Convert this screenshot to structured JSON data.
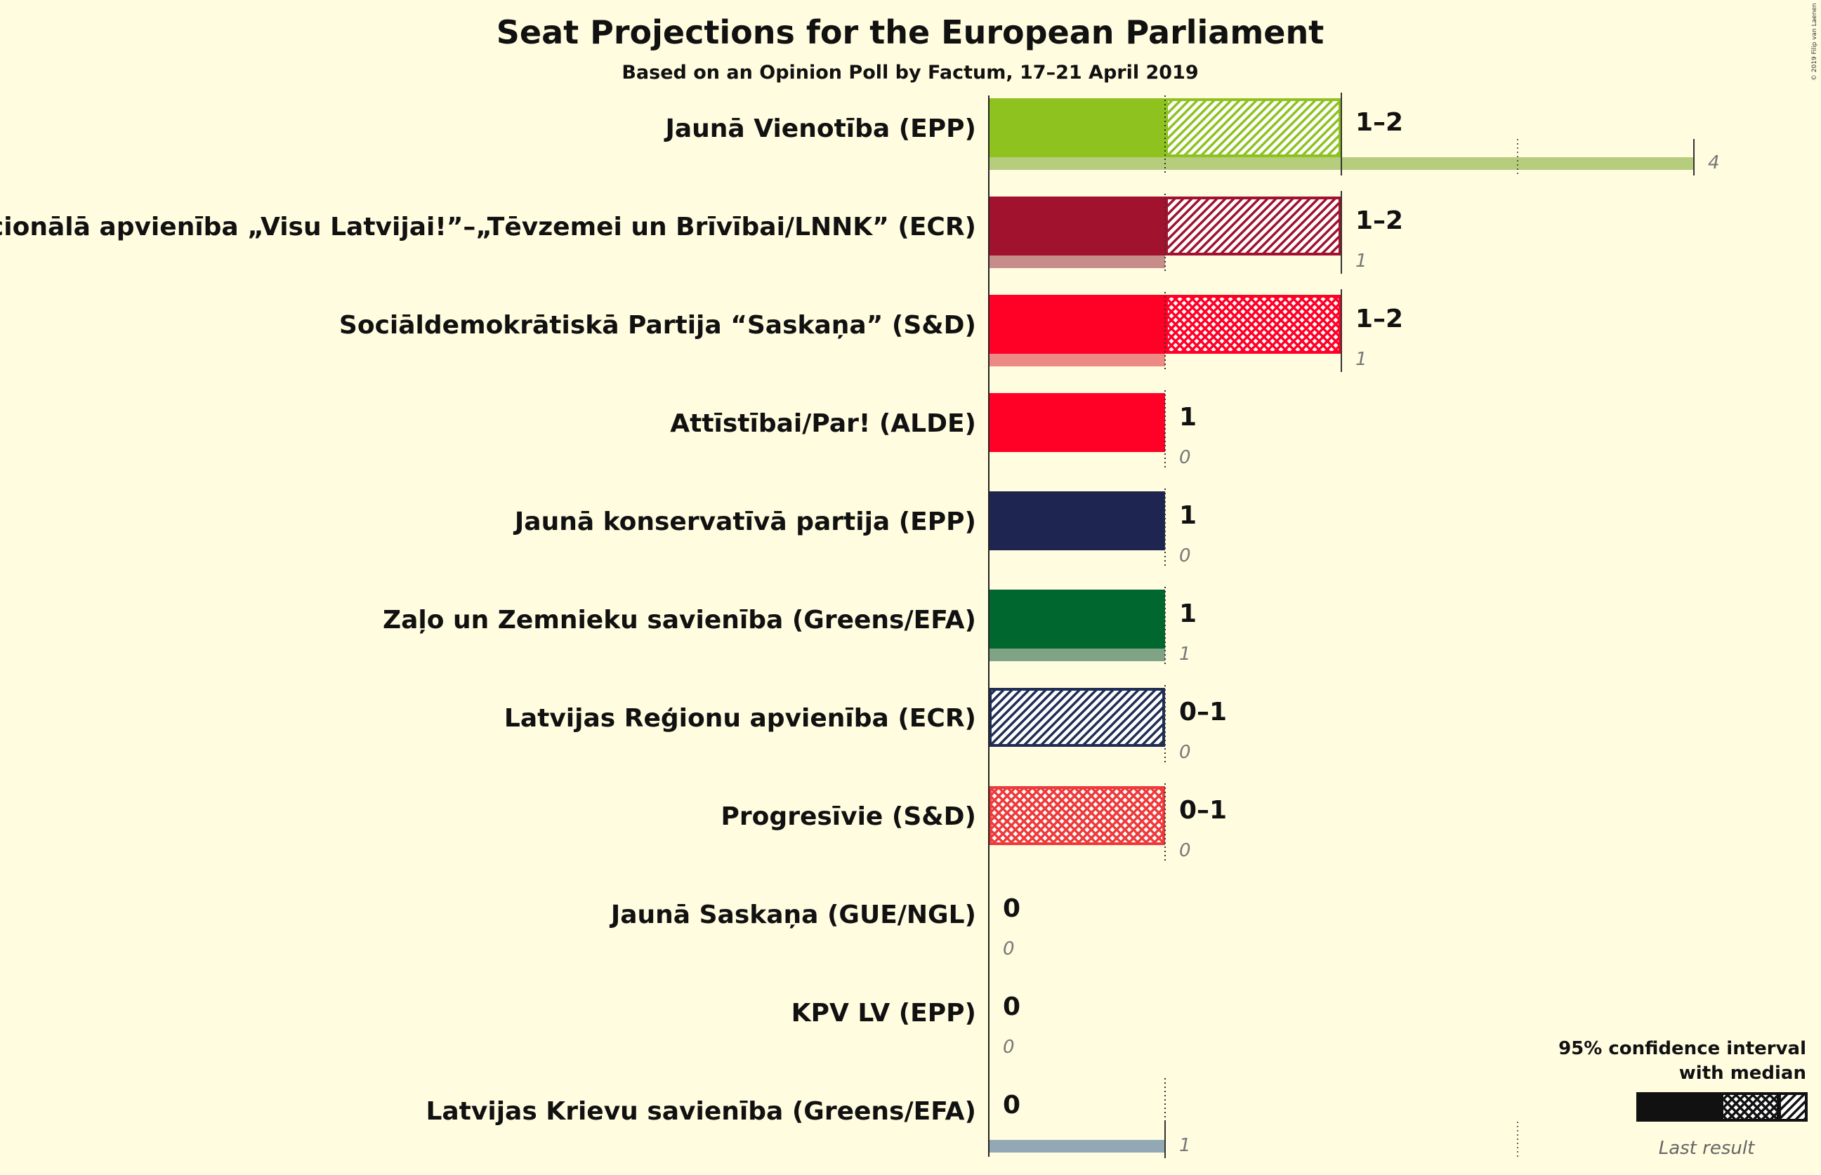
{
  "chart_data": {
    "type": "bar",
    "orientation": "horizontal",
    "title": "Seat Projections for the European Parliament",
    "subtitle": "Based on an Opinion Poll by Factum, 17–21 April 2019",
    "copyright": "© 2019 Filip van Laenen",
    "xlim": [
      0,
      4
    ],
    "parties": [
      {
        "name": "Jaunā Vienotība (EPP)",
        "color": "#8dc21f",
        "ci_low": 1,
        "median": 1,
        "ci_high": 2,
        "range_label": "1–2",
        "last_result": 4,
        "last_label": "4",
        "last_color": "#b5cd7d",
        "pattern": "diag"
      },
      {
        "name": "Nacionālā apvienība „Visu Latvijai!”–„Tēvzemei un Brīvībai/LNNK” (ECR)",
        "color": "#a0122e",
        "ci_low": 1,
        "median": 1,
        "ci_high": 2,
        "range_label": "1–2",
        "last_result": 1,
        "last_label": "1",
        "last_color": "#c78d8a",
        "pattern": "diag"
      },
      {
        "name": "Sociāldemokrātiskā Partija “Saskaņa” (S&D)",
        "color": "#ff0026",
        "ci_low": 1,
        "median": 2,
        "ci_high": 2,
        "range_label": "1–2",
        "last_result": 1,
        "last_label": "1",
        "last_color": "#ee8a86",
        "pattern": "cross"
      },
      {
        "name": "Attīstībai/Par! (ALDE)",
        "color": "#ff0026",
        "ci_low": 1,
        "median": 1,
        "ci_high": 1,
        "range_label": "1",
        "last_result": 0,
        "last_label": "0",
        "last_color": "#ee8a86",
        "pattern": "none"
      },
      {
        "name": "Jaunā konservatīvā partija (EPP)",
        "color": "#1f2551",
        "ci_low": 1,
        "median": 1,
        "ci_high": 1,
        "range_label": "1",
        "last_result": 0,
        "last_label": "0",
        "last_color": "#8a8aa0",
        "pattern": "none"
      },
      {
        "name": "Zaļo un Zemnieku savienība (Greens/EFA)",
        "color": "#00672f",
        "ci_low": 1,
        "median": 1,
        "ci_high": 1,
        "range_label": "1",
        "last_result": 1,
        "last_label": "1",
        "last_color": "#7fa384",
        "pattern": "none"
      },
      {
        "name": "Latvijas Reģionu apvienība (ECR)",
        "color": "#1f2e55",
        "ci_low": 0,
        "median": 0,
        "ci_high": 1,
        "range_label": "0–1",
        "last_result": 0,
        "last_label": "0",
        "last_color": "#8a8aa0",
        "pattern": "diag"
      },
      {
        "name": "Progresīvie (S&D)",
        "color": "#ee3a3a",
        "ci_low": 0,
        "median": 1,
        "ci_high": 1,
        "range_label": "0–1",
        "last_result": 0,
        "last_label": "0",
        "last_color": "#ee8a86",
        "pattern": "cross"
      },
      {
        "name": "Jaunā Saskaņa (GUE/NGL)",
        "color": "#990000",
        "ci_low": 0,
        "median": 0,
        "ci_high": 0,
        "range_label": "0",
        "last_result": 0,
        "last_label": "0",
        "last_color": "#c78d8a",
        "pattern": "none"
      },
      {
        "name": "KPV LV (EPP)",
        "color": "#333333",
        "ci_low": 0,
        "median": 0,
        "ci_high": 0,
        "range_label": "0",
        "last_result": 0,
        "last_label": "0",
        "last_color": "#999999",
        "pattern": "none"
      },
      {
        "name": "Latvijas Krievu savienība (Greens/EFA)",
        "color": "#5a7f99",
        "ci_low": 0,
        "median": 0,
        "ci_high": 0,
        "range_label": "0",
        "last_result": 1,
        "last_label": "1",
        "last_color": "#92a8b4",
        "pattern": "none"
      }
    ],
    "legend": {
      "line1": "95% confidence interval",
      "line2": "with median",
      "last": "Last result",
      "placement": "bottom-right"
    }
  }
}
